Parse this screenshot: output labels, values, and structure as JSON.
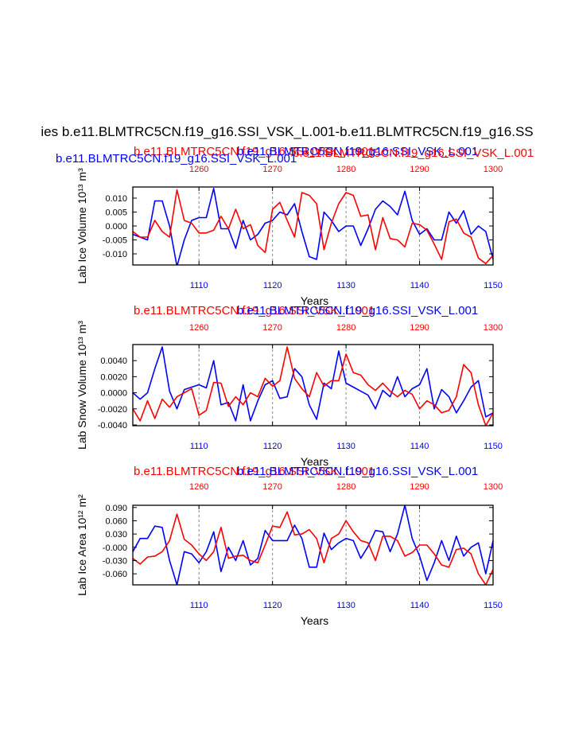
{
  "colors": {
    "series_a": "#0000ff",
    "series_b": "#ff0000",
    "ref_lines": "#888888",
    "axis": "#000000"
  },
  "header": {
    "main_title": "ies b.e11.BLMTRC5CN.f19_g16.SSI_VSK_L.001-b.e11.BLMTRC5CN.f19_g16.SS"
  },
  "chart_data": [
    {
      "type": "line",
      "id": "ice-volume",
      "title_red": "b.e11.BLMTRC5CN.f19_g16.SSI_VSK_L.001",
      "title_blue": "b.e11.BLMTRC5CN.f19_g16.SSI_VSK_L.001",
      "title_red_2": "b.e11.BLMTRC5CN.f19_g16.SSI_VSK_L.001",
      "title_blue_2": "b.e11.BLMTRC5CN.f19_g16.SSI_VSK_L.001",
      "ylabel": "Lab Ice Volume 10¹³ m³",
      "xlabel": "Years",
      "xlim": [
        1101,
        1150
      ],
      "xlim_top": [
        1251,
        1300
      ],
      "ylim": [
        -0.014,
        0.014
      ],
      "yticks": [
        0.01,
        0.005,
        0.0,
        -0.005,
        -0.01
      ],
      "ytick_labels": [
        "0.010",
        "0.005",
        "0.000",
        "-0.005",
        "-0.010"
      ],
      "xticks": [
        1110,
        1120,
        1130,
        1140,
        1150
      ],
      "xtick_labels": [
        "1110",
        "1120",
        "1130",
        "1140",
        "1150"
      ],
      "xticks_top": [
        1260,
        1270,
        1280,
        1290,
        1300
      ],
      "xtick_labels_top": [
        "1260",
        "1270",
        "1280",
        "1290",
        "1300"
      ],
      "vlines": [
        1110,
        1120,
        1130,
        1140
      ],
      "series": [
        {
          "name": "b.e11.BLMTRC5CN.f19_g16.SSI_VSK_L.001 (years 1101-1150)",
          "color": "blue",
          "values": [
            -0.003,
            -0.004,
            -0.005,
            0.009,
            0.009,
            0.0,
            -0.0145,
            -0.005,
            0.002,
            0.003,
            0.003,
            0.0135,
            -0.001,
            -0.001,
            -0.008,
            0.002,
            -0.005,
            -0.003,
            0.001,
            0.002,
            0.005,
            0.004,
            0.008,
            -0.002,
            -0.011,
            -0.012,
            0.005,
            0.002,
            -0.002,
            0.0,
            0.0,
            -0.007,
            -0.001,
            0.006,
            0.009,
            0.007,
            0.004,
            0.0125,
            0.002,
            -0.003,
            -0.001,
            -0.005,
            -0.005,
            0.005,
            0.001,
            0.0055,
            -0.003,
            0.0,
            -0.002,
            -0.012
          ]
        },
        {
          "name": "b.e11.BLMTRC5CN.f19_g16.SSI_VSK_L.001 (years 1251-1300)",
          "color": "red",
          "values": [
            -0.002,
            -0.004,
            -0.004,
            0.002,
            -0.002,
            -0.004,
            0.013,
            0.002,
            0.001,
            -0.0025,
            -0.0025,
            -0.0015,
            0.0035,
            -0.001,
            0.006,
            -0.001,
            0.0005,
            -0.007,
            -0.0095,
            0.006,
            0.0085,
            0.002,
            -0.004,
            0.012,
            0.011,
            0.008,
            -0.0085,
            0.001,
            0.008,
            0.012,
            0.011,
            0.0035,
            0.004,
            -0.0085,
            0.003,
            -0.0045,
            -0.005,
            -0.0075,
            0.001,
            0.0005,
            -0.0015,
            -0.0065,
            -0.012,
            0.0015,
            0.0025,
            -0.0025,
            -0.004,
            -0.0115,
            -0.0135,
            -0.0105
          ]
        }
      ]
    },
    {
      "type": "line",
      "id": "snow-volume",
      "title_red": "b.e11.BLMTRC5CN.f19_g16.SSI_VSK_L.001",
      "title_blue": "b.e11.BLMTRC5CN.f19_g16.SSI_VSK_L.001",
      "ylabel": "Lab Snow Volume 10¹³ m³",
      "xlabel": "Years",
      "xlim": [
        1101,
        1150
      ],
      "xlim_top": [
        1251,
        1300
      ],
      "ylim": [
        -0.0041,
        0.006
      ],
      "yticks": [
        0.004,
        0.002,
        0.0,
        -0.002,
        -0.004
      ],
      "ytick_labels": [
        "0.0040",
        "0.0020",
        "0.0000",
        "-0.0020",
        "-0.0040"
      ],
      "xticks": [
        1110,
        1120,
        1130,
        1140,
        1150
      ],
      "xtick_labels": [
        "1110",
        "1120",
        "1130",
        "1140",
        "1150"
      ],
      "xticks_top": [
        1260,
        1270,
        1280,
        1290,
        1300
      ],
      "xtick_labels_top": [
        "1260",
        "1270",
        "1280",
        "1290",
        "1300"
      ],
      "vlines": [
        1110,
        1120,
        1130,
        1140
      ],
      "series": [
        {
          "name": "b.e11.BLMTRC5CN.f19_g16.SSI_VSK_L.001 (years 1101-1150)",
          "color": "blue",
          "values": [
            0.0,
            -0.0008,
            0.0,
            0.003,
            0.0057,
            0.0002,
            -0.002,
            0.0004,
            0.0007,
            0.001,
            0.0006,
            0.004,
            -0.0015,
            -0.0012,
            -0.0035,
            0.001,
            -0.0035,
            -0.001,
            0.001,
            0.0015,
            -0.0007,
            -0.0005,
            0.003,
            0.002,
            -0.0015,
            -0.0033,
            0.0012,
            0.0005,
            0.0052,
            0.0012,
            0.0007,
            0.0002,
            -0.0003,
            -0.002,
            0.0003,
            -0.0005,
            0.002,
            -0.0005,
            0.0005,
            0.001,
            0.003,
            -0.002,
            0.0004,
            -0.0005,
            -0.0025,
            -0.001,
            0.0007,
            0.0015,
            -0.003,
            -0.0025
          ]
        },
        {
          "name": "b.e11.BLMTRC5CN.f19_g16.SSI_VSK_L.001 (years 1251-1300)",
          "color": "red",
          "values": [
            -0.002,
            -0.0035,
            -0.001,
            -0.0032,
            -0.0008,
            -0.0018,
            -0.0005,
            0.0,
            0.0005,
            -0.0028,
            -0.0022,
            0.0013,
            0.0012,
            -0.0017,
            -0.0005,
            -0.0015,
            0.0,
            -0.0005,
            0.0018,
            0.0008,
            0.0015,
            0.0057,
            0.0018,
            0.0005,
            -0.0005,
            0.0025,
            0.0008,
            0.0015,
            0.0015,
            0.0048,
            0.0025,
            0.0022,
            0.001,
            0.0003,
            0.0012,
            0.0002,
            -0.0005,
            0.0003,
            -0.0002,
            -0.002,
            -0.001,
            -0.0015,
            -0.0025,
            -0.0022,
            -0.0005,
            0.0035,
            0.0025,
            -0.0015,
            -0.0041,
            -0.0025
          ]
        }
      ]
    },
    {
      "type": "line",
      "id": "ice-area",
      "title_red": "b.e11.BLMTRC5CN.f19_g16.SSI_VSK_L.001",
      "title_blue": "b.e11.BLMTRC5CN.f19_g16.SSI_VSK_L.001",
      "ylabel": "Lab Ice Area 10¹² m²",
      "xlabel": "Years",
      "xlim": [
        1101,
        1150
      ],
      "xlim_top": [
        1251,
        1300
      ],
      "ylim": [
        -0.085,
        0.095
      ],
      "yticks": [
        0.09,
        0.06,
        0.03,
        0.0,
        -0.03,
        -0.06
      ],
      "ytick_labels": [
        "0.090",
        "0.060",
        "0.030",
        "-0.000",
        "-0.030",
        "-0.060"
      ],
      "xticks": [
        1110,
        1120,
        1130,
        1140,
        1150
      ],
      "xtick_labels": [
        "1110",
        "1120",
        "1130",
        "1140",
        "1150"
      ],
      "xticks_top": [
        1260,
        1270,
        1280,
        1290,
        1300
      ],
      "xtick_labels_top": [
        "1260",
        "1270",
        "1280",
        "1290",
        "1300"
      ],
      "vlines": [
        1110,
        1120,
        1130,
        1140
      ],
      "series": [
        {
          "name": "b.e11.BLMTRC5CN.f19_g16.SSI_VSK_L.001 (years 1101-1150)",
          "color": "blue",
          "values": [
            -0.01,
            0.02,
            0.02,
            0.048,
            0.045,
            -0.03,
            -0.085,
            -0.01,
            -0.015,
            -0.035,
            -0.01,
            0.035,
            -0.055,
            0.0,
            -0.03,
            0.015,
            -0.04,
            -0.025,
            0.038,
            0.015,
            0.015,
            0.015,
            0.05,
            0.02,
            -0.045,
            -0.045,
            0.032,
            -0.005,
            0.01,
            0.02,
            0.015,
            -0.025,
            0.002,
            0.038,
            0.035,
            -0.01,
            0.03,
            0.095,
            0.02,
            -0.02,
            -0.075,
            -0.035,
            0.015,
            -0.03,
            0.025,
            -0.02,
            0.0,
            0.01,
            -0.06,
            0.015
          ]
        },
        {
          "name": "b.e11.BLMTRC5CN.f19_g16.SSI_VSK_L.001 (years 1251-1300)",
          "color": "red",
          "values": [
            -0.025,
            -0.038,
            -0.022,
            -0.02,
            -0.01,
            0.015,
            0.075,
            0.018,
            0.005,
            -0.015,
            -0.03,
            -0.01,
            0.045,
            -0.025,
            -0.02,
            -0.018,
            -0.03,
            -0.035,
            0.005,
            0.048,
            0.045,
            0.08,
            0.028,
            0.03,
            0.04,
            0.02,
            -0.035,
            0.02,
            0.03,
            0.06,
            0.035,
            0.015,
            0.01,
            -0.03,
            0.025,
            0.025,
            0.015,
            -0.02,
            -0.012,
            0.005,
            0.005,
            -0.015,
            -0.04,
            -0.045,
            -0.005,
            -0.002,
            -0.015,
            -0.06,
            -0.085,
            -0.05
          ]
        }
      ]
    }
  ]
}
